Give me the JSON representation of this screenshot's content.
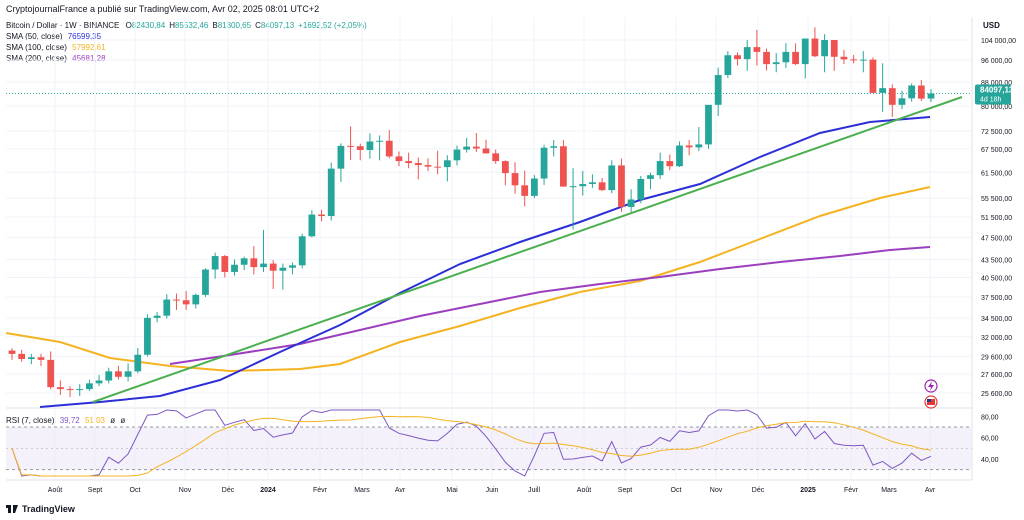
{
  "header": {
    "publish_line": "CryptojournalFrance a publié sur TradingView.com, Avr 02, 2025 08:01 UTC+2"
  },
  "legend": {
    "symbol": "Bitcoin / Dollar · 1W · BINANCE",
    "ohlc": [
      {
        "key": "O",
        "value": "82430,84"
      },
      {
        "key": "H",
        "value": "85532,46"
      },
      {
        "key": "B",
        "value": "81300,65"
      },
      {
        "key": "C",
        "value": "84097,13"
      },
      {
        "key": "",
        "value": "+1692,52 (+2,05%)"
      }
    ],
    "indicators": [
      {
        "label": "SMA (50, close)",
        "value": "76599,35",
        "color": "#2b2fd6"
      },
      {
        "label": "SMA (100, close)",
        "value": "57992,61",
        "color": "#f5b321"
      },
      {
        "label": "SMA (200, close)",
        "value": "45681,28",
        "color": "#9b3fbf"
      }
    ],
    "rsi_label": "RSI (7, close)",
    "rsi_values": [
      "39,72",
      "51,03",
      "ø",
      "ø"
    ]
  },
  "footer": {
    "brand": "TradingView"
  },
  "chart_data": {
    "type": "candlestick",
    "currency": "USD",
    "price_scale": "log",
    "y_ticks": [
      104000,
      96000,
      88000,
      80000,
      72500,
      67500,
      61500,
      55500,
      51500,
      47500,
      43500,
      40500,
      37500,
      34500,
      32000,
      29600,
      27600,
      25600
    ],
    "y_tick_labels": [
      "104 000,00",
      "96 000,00",
      "88 000,00",
      "80 000,00",
      "72 500,00",
      "67 500,00",
      "61 500,00",
      "55 500,00",
      "51 500,00",
      "47 500,00",
      "43 500,00",
      "40 500,00",
      "37 500,00",
      "34 500,00",
      "32 000,00",
      "29 600,00",
      "27 600,00",
      "25 600,00"
    ],
    "price_label": "84097,13",
    "countdown_label": "4d 18h",
    "x_labels": [
      "Août",
      "Sept",
      "Oct",
      "Nov",
      "Déc",
      "2024",
      "Févr",
      "Mars",
      "Avr",
      "Mai",
      "Juin",
      "Juill",
      "Août",
      "Sept",
      "Oct",
      "Nov",
      "Déc",
      "2025",
      "Févr",
      "Mars",
      "Avr"
    ],
    "candles_ohlc": [
      [
        30300,
        30600,
        29200,
        29900
      ],
      [
        29900,
        30400,
        29000,
        29300
      ],
      [
        29300,
        29900,
        28700,
        29500
      ],
      [
        29500,
        29900,
        28500,
        29200
      ],
      [
        29200,
        30200,
        26000,
        26200
      ],
      [
        26200,
        26900,
        25400,
        26000
      ],
      [
        26000,
        26300,
        25200,
        25900
      ],
      [
        25900,
        26500,
        25300,
        26000
      ],
      [
        26000,
        27000,
        25800,
        26600
      ],
      [
        26600,
        27500,
        26300,
        26900
      ],
      [
        26900,
        28300,
        26600,
        27900
      ],
      [
        27900,
        28500,
        27000,
        27300
      ],
      [
        27300,
        28800,
        26800,
        27900
      ],
      [
        27900,
        30600,
        27700,
        29800
      ],
      [
        29800,
        35000,
        29600,
        34500
      ],
      [
        34500,
        35300,
        33900,
        34800
      ],
      [
        34800,
        37900,
        34400,
        37100
      ],
      [
        37100,
        38000,
        35600,
        37000
      ],
      [
        37000,
        38400,
        35600,
        36400
      ],
      [
        36400,
        38000,
        35800,
        37800
      ],
      [
        37800,
        42000,
        37500,
        41800
      ],
      [
        41800,
        44700,
        40300,
        44100
      ],
      [
        44100,
        44300,
        40500,
        41400
      ],
      [
        41400,
        43500,
        40800,
        42600
      ],
      [
        42600,
        44000,
        41700,
        43700
      ],
      [
        43700,
        45900,
        41000,
        42200
      ],
      [
        42200,
        48900,
        41400,
        42800
      ],
      [
        42800,
        43400,
        38700,
        41600
      ],
      [
        41600,
        42800,
        38600,
        42100
      ],
      [
        42100,
        43000,
        41000,
        42500
      ],
      [
        42500,
        48200,
        42000,
        47700
      ],
      [
        47700,
        52900,
        47500,
        52000
      ],
      [
        52000,
        53000,
        50600,
        51700
      ],
      [
        51700,
        63900,
        50800,
        62400
      ],
      [
        62400,
        69000,
        59200,
        68300
      ],
      [
        68300,
        73800,
        64600,
        68200
      ],
      [
        68200,
        68900,
        64500,
        67200
      ],
      [
        67200,
        71800,
        64900,
        69500
      ],
      [
        69500,
        71200,
        64500,
        69700
      ],
      [
        69700,
        72700,
        65000,
        65500
      ],
      [
        65500,
        66800,
        63000,
        64300
      ],
      [
        64300,
        66500,
        62500,
        63800
      ],
      [
        63800,
        65200,
        59800,
        63300
      ],
      [
        63300,
        65000,
        61800,
        62900
      ],
      [
        62900,
        67000,
        61000,
        62800
      ],
      [
        62800,
        65800,
        59300,
        64500
      ],
      [
        64500,
        68400,
        63200,
        67300
      ],
      [
        67300,
        70500,
        66500,
        68100
      ],
      [
        68100,
        71900,
        66700,
        67600
      ],
      [
        67600,
        70000,
        66200,
        66300
      ],
      [
        66300,
        67300,
        63600,
        64300
      ],
      [
        64300,
        64500,
        58400,
        61300
      ],
      [
        61300,
        64000,
        56500,
        58400
      ],
      [
        58400,
        61900,
        53700,
        56000
      ],
      [
        56000,
        60800,
        55500,
        60000
      ],
      [
        60000,
        68600,
        58500,
        67800
      ],
      [
        67800,
        69900,
        65500,
        68200
      ],
      [
        68200,
        69900,
        62000,
        58100
      ],
      [
        58100,
        62500,
        49000,
        58200
      ],
      [
        58200,
        61800,
        56100,
        58700
      ],
      [
        58700,
        61000,
        57800,
        59100
      ],
      [
        59100,
        60100,
        57100,
        57300
      ],
      [
        57300,
        64500,
        56600,
        63200
      ],
      [
        63200,
        64900,
        52500,
        53600
      ],
      [
        53600,
        57500,
        52500,
        55200
      ],
      [
        55200,
        60600,
        54400,
        59900
      ],
      [
        59900,
        61400,
        57500,
        60800
      ],
      [
        60800,
        66500,
        59900,
        64300
      ],
      [
        64300,
        66000,
        62000,
        63000
      ],
      [
        63000,
        69500,
        62800,
        68400
      ],
      [
        68400,
        69900,
        65800,
        67900
      ],
      [
        67900,
        73600,
        66900,
        68700
      ],
      [
        68700,
        77200,
        67500,
        80400
      ],
      [
        80400,
        93200,
        76900,
        90500
      ],
      [
        90500,
        99500,
        89400,
        97900
      ],
      [
        97900,
        99000,
        94000,
        96400
      ],
      [
        96400,
        104000,
        92000,
        101100
      ],
      [
        101100,
        108300,
        94000,
        99200
      ],
      [
        99200,
        100500,
        92100,
        94500
      ],
      [
        94500,
        98700,
        91500,
        95200
      ],
      [
        95200,
        102700,
        93000,
        99200
      ],
      [
        99200,
        102600,
        94200,
        94500
      ],
      [
        94500,
        100000,
        89300,
        104600
      ],
      [
        104600,
        109400,
        97200,
        97500
      ],
      [
        97500,
        106400,
        91500,
        104000
      ],
      [
        104000,
        102600,
        92000,
        97300
      ],
      [
        97300,
        100000,
        94500,
        96300
      ],
      [
        96300,
        98000,
        94800,
        96000
      ],
      [
        96000,
        99500,
        91500,
        96200
      ],
      [
        96200,
        97000,
        85500,
        84300
      ],
      [
        84300,
        94800,
        78200,
        85900
      ],
      [
        85900,
        87200,
        76600,
        80400
      ],
      [
        80400,
        85000,
        79000,
        82500
      ],
      [
        82500,
        87500,
        81400,
        86800
      ],
      [
        86800,
        88700,
        81600,
        82400
      ],
      [
        82430,
        85532,
        81300,
        84097
      ]
    ]
  }
}
